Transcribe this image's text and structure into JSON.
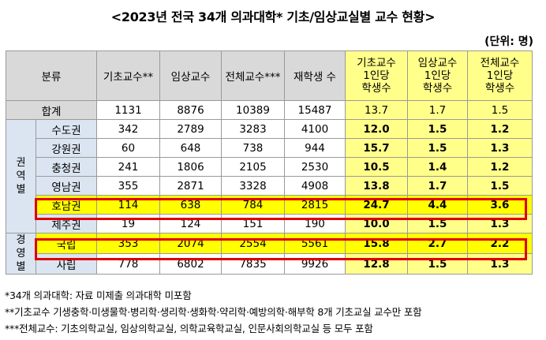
{
  "title": "<2023년 전국 34개 의과대학* 기초/임상교실별 교수 현황>",
  "unit": "(단위: 명)",
  "headers": {
    "category": "분류",
    "basic": "기초교수**",
    "clinical": "임상교수",
    "total": "전체교수***",
    "students": "재학생 수",
    "basic_ratio": [
      "기초교수",
      "1인당",
      "학생수"
    ],
    "clinical_ratio": [
      "임상교수",
      "1인당",
      "학생수"
    ],
    "total_ratio": [
      "전체교수",
      "1인당",
      "학생수"
    ]
  },
  "sum_row": {
    "label": "합계",
    "basic": "1131",
    "clinical": "8876",
    "total": "10389",
    "students": "15487",
    "r1": "13.7",
    "r2": "1.7",
    "r3": "1.5"
  },
  "group_region": "권역별",
  "group_type": "경영별",
  "region_rows": [
    {
      "label": "수도권",
      "basic": "342",
      "clinical": "2789",
      "total": "3283",
      "students": "4100",
      "r1": "12.0",
      "r2": "1.5",
      "r3": "1.2"
    },
    {
      "label": "강원권",
      "basic": "60",
      "clinical": "648",
      "total": "738",
      "students": "944",
      "r1": "15.7",
      "r2": "1.5",
      "r3": "1.3"
    },
    {
      "label": "충청권",
      "basic": "241",
      "clinical": "1806",
      "total": "2105",
      "students": "2530",
      "r1": "10.5",
      "r2": "1.4",
      "r3": "1.2"
    },
    {
      "label": "영남권",
      "basic": "355",
      "clinical": "2871",
      "total": "3328",
      "students": "4908",
      "r1": "13.8",
      "r2": "1.7",
      "r3": "1.5"
    },
    {
      "label": "호남권",
      "basic": "114",
      "clinical": "638",
      "total": "784",
      "students": "2815",
      "r1": "24.7",
      "r2": "4.4",
      "r3": "3.6"
    },
    {
      "label": "제주권",
      "basic": "19",
      "clinical": "124",
      "total": "151",
      "students": "190",
      "r1": "10.0",
      "r2": "1.5",
      "r3": "1.3"
    }
  ],
  "type_rows": [
    {
      "label": "국립",
      "basic": "353",
      "clinical": "2074",
      "total": "2554",
      "students": "5561",
      "r1": "15.8",
      "r2": "2.7",
      "r3": "2.2"
    },
    {
      "label": "사립",
      "basic": "778",
      "clinical": "6802",
      "total": "7835",
      "students": "9926",
      "r1": "12.8",
      "r2": "1.5",
      "r3": "1.3"
    }
  ],
  "notes": [
    "*34개 의과대학: 자료 미제출 의과대학 미포함",
    "**기초교수 기생충학·미생물학·병리학·생리학·생화학·약리학·예방의학·해부학 8개 기초교실 교수만 포함",
    "***전체교수: 기초의학교실, 임상의학교실, 의학교육학교실, 인문사회의학교실 등 모두 포함"
  ],
  "colors": {
    "header_gray": "#d9d9d9",
    "ratio_yellow": "#ffff8a",
    "highlight_yellow": "#ffff00",
    "group_blue": "#dbe5f1",
    "highlight_border": "#e00000"
  }
}
